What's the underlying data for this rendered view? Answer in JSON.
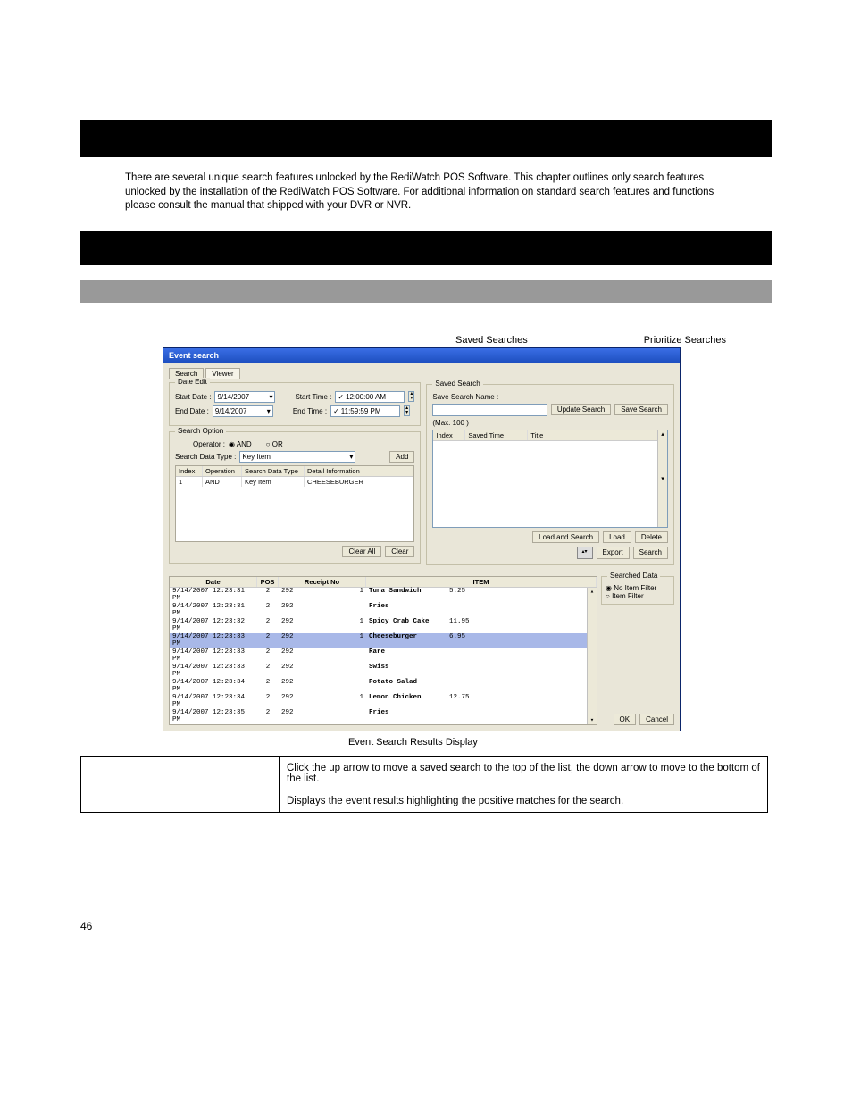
{
  "intro": "There are several unique search features unlocked by the RediWatch POS Software. This chapter outlines only search features unlocked by the installation of the RediWatch POS Software. For additional information on standard search features and functions please consult the manual that shipped with your DVR or NVR.",
  "topLabels": {
    "saved": "Saved Searches",
    "prioritize": "Prioritize Searches"
  },
  "window": {
    "title": "Event search",
    "tabs": {
      "search": "Search",
      "viewer": "Viewer"
    },
    "dateEdit": {
      "legend": "Date Edit",
      "startDateLabel": "Start Date :",
      "endDateLabel": "End Date :",
      "startDate": "9/14/2007",
      "endDate": "9/14/2007",
      "startTimeLabel": "Start Time :",
      "endTimeLabel": "End Time :",
      "startTime": "12:00:00 AM",
      "endTime": "11:59:59 PM"
    },
    "searchOption": {
      "legend": "Search Option",
      "operatorLabel": "Operator :",
      "and": "AND",
      "or": "OR",
      "dataTypeLabel": "Search Data Type :",
      "dataType": "Key Item",
      "addBtn": "Add",
      "cols": {
        "index": "Index",
        "operation": "Operation",
        "sdt": "Search Data Type",
        "detail": "Detail Information"
      },
      "row": {
        "index": "1",
        "operation": "AND",
        "sdt": "Key Item",
        "detail": "CHEESEBURGER"
      },
      "clearAll": "Clear All",
      "clear": "Clear"
    },
    "savedSearch": {
      "legend": "Saved Search",
      "nameLabel": "Save Search Name :",
      "updateBtn": "Update Search",
      "saveBtn": "Save Search",
      "maxLabel": "(Max.",
      "maxVal": "100",
      "maxEnd": ")",
      "cols": {
        "index": "Index",
        "savedTime": "Saved Time",
        "title": "Title"
      },
      "loadAndSearch": "Load and Search",
      "load": "Load",
      "delete": "Delete",
      "export": "Export",
      "search": "Search"
    },
    "results": {
      "cols": {
        "date": "Date",
        "pos": "POS",
        "receipt": "Receipt No",
        "item": "ITEM"
      },
      "rows": [
        {
          "date": "9/14/2007 12:23:31 PM",
          "pos": "2",
          "rec": "292",
          "qty": "1",
          "item": "Tuna Sandwich",
          "price": "5.25",
          "hl": false
        },
        {
          "date": "9/14/2007 12:23:31 PM",
          "pos": "2",
          "rec": "292",
          "qty": "",
          "item": "Fries",
          "price": "",
          "hl": false
        },
        {
          "date": "9/14/2007 12:23:32 PM",
          "pos": "2",
          "rec": "292",
          "qty": "1",
          "item": "Spicy Crab Cake",
          "price": "11.95",
          "hl": false
        },
        {
          "date": "9/14/2007 12:23:33 PM",
          "pos": "2",
          "rec": "292",
          "qty": "1",
          "item": "Cheeseburger",
          "price": "6.95",
          "hl": true
        },
        {
          "date": "9/14/2007 12:23:33 PM",
          "pos": "2",
          "rec": "292",
          "qty": "",
          "item": "Rare",
          "price": "",
          "hl": false
        },
        {
          "date": "9/14/2007 12:23:33 PM",
          "pos": "2",
          "rec": "292",
          "qty": "",
          "item": "Swiss",
          "price": "",
          "hl": false
        },
        {
          "date": "9/14/2007 12:23:34 PM",
          "pos": "2",
          "rec": "292",
          "qty": "",
          "item": "Potato Salad",
          "price": "",
          "hl": false
        },
        {
          "date": "9/14/2007 12:23:34 PM",
          "pos": "2",
          "rec": "292",
          "qty": "1",
          "item": "Lemon Chicken",
          "price": "12.75",
          "hl": false
        },
        {
          "date": "9/14/2007 12:23:35 PM",
          "pos": "2",
          "rec": "292",
          "qty": "",
          "item": "Fries",
          "price": "",
          "hl": false
        }
      ]
    },
    "searchedData": {
      "legend": "Searched Data",
      "noItemFilter": "No Item Filter",
      "itemFilter": "Item Filter"
    },
    "ok": "OK",
    "cancel": "Cancel"
  },
  "bottomLabel": "Event Search Results Display",
  "descTable": {
    "r1": "Click the up arrow to move a saved search to the top of the list, the down arrow to move to the bottom of the list.",
    "r2": "Displays the event results highlighting the positive matches for the search."
  },
  "pageNum": "46"
}
